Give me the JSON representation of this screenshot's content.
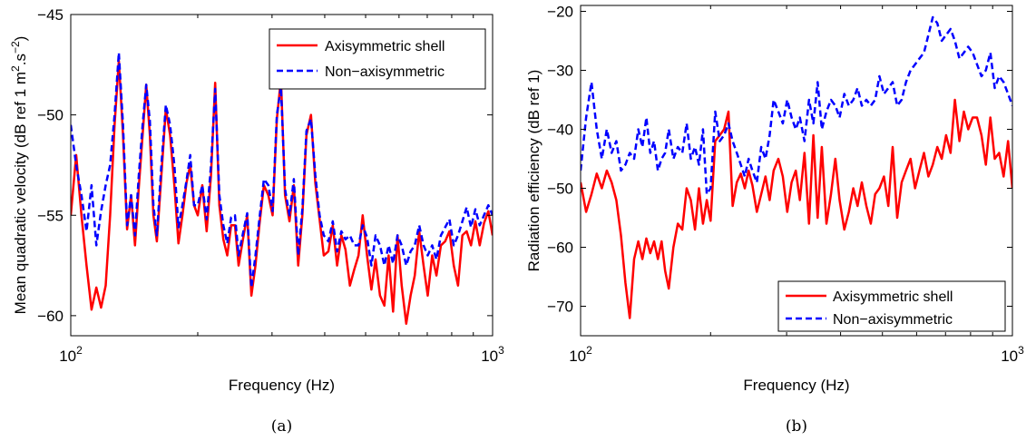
{
  "chart_data": [
    {
      "type": "line",
      "caption": "(a)",
      "xlabel": "Frequency (Hz)",
      "ylabel": "Mean quadratic velocity (dB ref 1 m",
      "ylabel_sup1": "2",
      "ylabel_mid": ".s",
      "ylabel_sup2": "−2",
      "ylabel_end": ")",
      "xscale": "log",
      "xlim": [
        100,
        1000
      ],
      "ylim": [
        -61,
        -45
      ],
      "yticks": [
        "-45",
        "-50",
        "-55",
        "-60"
      ],
      "ytick_values": [
        -45,
        -50,
        -55,
        -60
      ],
      "xticks": [
        {
          "base": "10",
          "exp": "2",
          "value": 100
        },
        {
          "base": "10",
          "exp": "3",
          "value": 1000
        }
      ],
      "legend": "top-right",
      "series": [
        {
          "name": "Axisymmetric shell",
          "color": "#ff0000",
          "dash": "solid",
          "x": [
            100,
            103,
            106,
            109,
            112,
            115,
            118,
            121,
            124,
            127,
            130,
            133,
            136,
            139,
            142,
            145,
            148,
            151,
            154,
            157,
            160,
            164,
            168,
            172,
            176,
            180,
            184,
            188,
            192,
            196,
            200,
            205,
            210,
            215,
            220,
            225,
            230,
            235,
            240,
            245,
            250,
            256,
            262,
            268,
            274,
            280,
            287,
            294,
            301,
            308,
            315,
            322,
            330,
            338,
            346,
            354,
            362,
            371,
            380,
            389,
            398,
            408,
            418,
            428,
            438,
            448,
            459,
            470,
            481,
            492,
            504,
            516,
            528,
            541,
            554,
            567,
            581,
            595,
            609,
            624,
            639,
            654,
            670,
            686,
            702,
            719,
            736,
            754,
            772,
            790,
            809,
            828,
            848,
            868,
            889,
            910,
            932,
            954,
            977,
            1000
          ],
          "y": [
            -55,
            -52,
            -55,
            -57.5,
            -59.7,
            -58.6,
            -59.6,
            -58.5,
            -55,
            -50.5,
            -47.3,
            -51,
            -55.7,
            -54,
            -56.5,
            -53.6,
            -51,
            -48.5,
            -51,
            -55,
            -56.3,
            -53,
            -49.7,
            -51,
            -53.5,
            -56.4,
            -55,
            -53.4,
            -52.5,
            -54.5,
            -55,
            -53.5,
            -55.8,
            -53,
            -48.4,
            -54.5,
            -56.2,
            -57,
            -55.5,
            -55.5,
            -57.5,
            -56.2,
            -55,
            -59,
            -57.5,
            -55.5,
            -53.5,
            -54,
            -55,
            -50.2,
            -48.2,
            -54,
            -55.3,
            -53.5,
            -57.5,
            -55,
            -51,
            -50,
            -53.4,
            -55.2,
            -57,
            -56.8,
            -55.5,
            -57.5,
            -56,
            -56.7,
            -58.5,
            -57.7,
            -57,
            -55,
            -57,
            -58.7,
            -57.2,
            -59,
            -59.5,
            -57,
            -59.8,
            -56,
            -58.5,
            -60.4,
            -59,
            -58,
            -55.8,
            -57.5,
            -59,
            -57,
            -58,
            -56.5,
            -56.3,
            -55.8,
            -57.5,
            -58.5,
            -56,
            -55.8,
            -56.5,
            -55.3,
            -56.5,
            -55.4,
            -54.8,
            -56
          ]
        },
        {
          "name": "Non−axisymmetric",
          "color": "#0000ff",
          "dash": "dashed",
          "x": [
            100,
            103,
            106,
            109,
            112,
            115,
            118,
            121,
            124,
            127,
            130,
            133,
            136,
            139,
            142,
            145,
            148,
            151,
            154,
            157,
            160,
            164,
            168,
            172,
            176,
            180,
            184,
            188,
            192,
            196,
            200,
            205,
            210,
            215,
            220,
            225,
            230,
            235,
            240,
            245,
            250,
            256,
            262,
            268,
            274,
            280,
            287,
            294,
            301,
            308,
            315,
            322,
            330,
            338,
            346,
            354,
            362,
            371,
            380,
            389,
            398,
            408,
            418,
            428,
            438,
            448,
            459,
            470,
            481,
            492,
            504,
            516,
            528,
            541,
            554,
            567,
            581,
            595,
            609,
            624,
            639,
            654,
            670,
            686,
            702,
            719,
            736,
            754,
            772,
            790,
            809,
            828,
            848,
            868,
            889,
            910,
            932,
            954,
            977,
            1000
          ],
          "y": [
            -50.5,
            -52.5,
            -54,
            -55.8,
            -53.5,
            -56.5,
            -54.8,
            -53.5,
            -52.5,
            -50,
            -46.9,
            -50.5,
            -55.5,
            -54,
            -56,
            -53,
            -50.5,
            -48.5,
            -50.3,
            -54.5,
            -56,
            -52.5,
            -49.5,
            -50.5,
            -52.5,
            -55.6,
            -54.5,
            -53.3,
            -52,
            -54.5,
            -54.5,
            -53.5,
            -55.2,
            -52.5,
            -48.7,
            -54,
            -55.5,
            -56.4,
            -55.1,
            -55,
            -57,
            -55.9,
            -54.9,
            -58.6,
            -57,
            -55.2,
            -53.2,
            -53.5,
            -54.8,
            -50,
            -48.6,
            -53.7,
            -55,
            -53.2,
            -57,
            -54.7,
            -50.8,
            -50.2,
            -53,
            -55,
            -56,
            -56.3,
            -55.3,
            -56.8,
            -55.8,
            -56.2,
            -56,
            -56.5,
            -56.5,
            -55.5,
            -56.1,
            -57.5,
            -56,
            -56.5,
            -57.5,
            -56.5,
            -57.4,
            -56,
            -56.5,
            -57.5,
            -56.8,
            -56.5,
            -55.5,
            -56.5,
            -57,
            -56.5,
            -57.2,
            -56,
            -55.6,
            -55.2,
            -56.5,
            -56,
            -55.3,
            -54.6,
            -55.6,
            -54.7,
            -55.5,
            -55,
            -54.5,
            -55
          ]
        }
      ]
    },
    {
      "type": "line",
      "caption": "(b)",
      "xlabel": "Frequency (Hz)",
      "ylabel": "Radiation efficiency (dB ref 1)",
      "xscale": "log",
      "xlim": [
        100,
        1000
      ],
      "ylim": [
        -75,
        -19
      ],
      "yticks": [
        "-20",
        "-30",
        "-40",
        "-50",
        "-60",
        "-70"
      ],
      "ytick_values": [
        -20,
        -30,
        -40,
        -50,
        -60,
        -70
      ],
      "xticks": [
        {
          "base": "10",
          "exp": "2",
          "value": 100
        },
        {
          "base": "10",
          "exp": "3",
          "value": 1000
        }
      ],
      "legend": "bottom-right",
      "series": [
        {
          "name": "Axisymmetric shell",
          "color": "#ff0000",
          "dash": "solid",
          "x": [
            100,
            103,
            106,
            109,
            112,
            115,
            118,
            121,
            124,
            127,
            130,
            133,
            136,
            139,
            142,
            145,
            148,
            151,
            154,
            157,
            160,
            164,
            168,
            172,
            176,
            180,
            184,
            188,
            192,
            196,
            200,
            205,
            210,
            215,
            220,
            225,
            230,
            235,
            240,
            245,
            250,
            256,
            262,
            268,
            274,
            280,
            287,
            294,
            301,
            308,
            315,
            322,
            330,
            338,
            346,
            354,
            362,
            371,
            380,
            389,
            398,
            408,
            418,
            428,
            438,
            448,
            459,
            470,
            481,
            492,
            504,
            516,
            528,
            541,
            554,
            567,
            581,
            595,
            609,
            624,
            639,
            654,
            670,
            686,
            702,
            719,
            736,
            754,
            772,
            790,
            809,
            828,
            848,
            868,
            889,
            910,
            932,
            954,
            977,
            1000
          ],
          "y": [
            -49,
            -54,
            -51,
            -47.5,
            -50,
            -47,
            -49,
            -52,
            -58,
            -66,
            -72,
            -62,
            -59,
            -62,
            -58.5,
            -61,
            -59,
            -62,
            -59,
            -64,
            -67,
            -60,
            -56,
            -57,
            -50,
            -52,
            -57,
            -50,
            -56,
            -52,
            -55.5,
            -42,
            -41,
            -40,
            -37,
            -53,
            -49,
            -47.5,
            -50,
            -47,
            -49.5,
            -54,
            -51,
            -48,
            -52,
            -47,
            -45,
            -48,
            -54,
            -49,
            -47,
            -52,
            -44,
            -56,
            -41,
            -55,
            -43,
            -56,
            -51,
            -45,
            -52,
            -57,
            -54,
            -50,
            -53,
            -49,
            -53,
            -56,
            -51,
            -50,
            -48,
            -53,
            -43,
            -55,
            -49,
            -47,
            -45,
            -50,
            -47,
            -44,
            -48,
            -46,
            -43,
            -45,
            -41,
            -44,
            -35,
            -42,
            -37,
            -40,
            -38,
            -38,
            -41,
            -46,
            -38,
            -45,
            -44,
            -48,
            -42,
            -50
          ]
        },
        {
          "name": "Non−axisymmetric",
          "color": "#0000ff",
          "dash": "dashed",
          "x": [
            100,
            103,
            106,
            109,
            112,
            115,
            118,
            121,
            124,
            127,
            130,
            133,
            136,
            139,
            142,
            145,
            148,
            151,
            154,
            157,
            160,
            164,
            168,
            172,
            176,
            180,
            184,
            188,
            192,
            196,
            200,
            205,
            210,
            215,
            220,
            225,
            230,
            235,
            240,
            245,
            250,
            256,
            262,
            268,
            274,
            280,
            287,
            294,
            301,
            308,
            315,
            322,
            330,
            338,
            346,
            354,
            362,
            371,
            380,
            389,
            398,
            408,
            418,
            428,
            438,
            448,
            459,
            470,
            481,
            492,
            504,
            516,
            528,
            541,
            554,
            567,
            581,
            595,
            609,
            624,
            639,
            654,
            670,
            686,
            702,
            719,
            736,
            754,
            772,
            790,
            809,
            828,
            848,
            868,
            889,
            910,
            932,
            954,
            977,
            1000
          ],
          "y": [
            -47,
            -38,
            -32,
            -40,
            -45,
            -40,
            -44,
            -42,
            -47,
            -46,
            -44,
            -45,
            -40,
            -43,
            -38,
            -44,
            -42,
            -47,
            -45,
            -44,
            -40,
            -45,
            -43,
            -44,
            -39,
            -45,
            -43,
            -46,
            -40,
            -51,
            -50,
            -37,
            -42,
            -41,
            -39,
            -42,
            -44,
            -46,
            -48,
            -45,
            -47,
            -49,
            -43,
            -45,
            -41,
            -35,
            -37,
            -39,
            -35,
            -38,
            -40,
            -38,
            -42,
            -35,
            -39,
            -32,
            -40,
            -37,
            -35,
            -36,
            -38,
            -34,
            -36,
            -35,
            -33,
            -36,
            -35,
            -36,
            -35,
            -31,
            -34,
            -33,
            -32,
            -36,
            -35,
            -32,
            -30,
            -29,
            -28,
            -27,
            -24,
            -21,
            -22,
            -25,
            -24,
            -23,
            -25,
            -28,
            -27,
            -26,
            -27,
            -29,
            -31,
            -30,
            -27,
            -33,
            -31,
            -32,
            -34,
            -36
          ]
        }
      ]
    }
  ]
}
